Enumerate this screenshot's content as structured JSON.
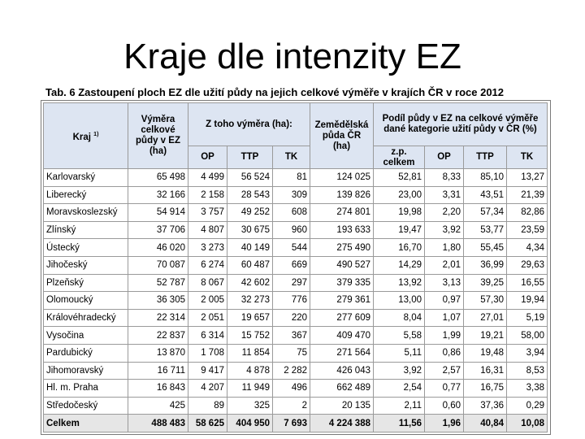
{
  "slide": {
    "title": "Kraje dle intenzity EZ"
  },
  "table": {
    "caption": "Tab. 6 Zastoupení ploch EZ dle užití půdy na jejich celkové výměře v krajích ČR v roce 2012",
    "headers": {
      "kraj": "Kraj",
      "kraj_note": "1)",
      "vymera": "Výměra celkové půdy v EZ (ha)",
      "z_toho": "Z toho výměra (ha):",
      "zemedelska": "Zemědělská půda ČR (ha)",
      "podil": "Podíl půdy v EZ na celkové výměře dané kategorie užití půdy v ČR (%)",
      "op": "OP",
      "ttp": "TTP",
      "tk": "TK",
      "zp_celkem": "z.p. celkem",
      "op2": "OP",
      "ttp2": "TTP",
      "tk2": "TK"
    },
    "rows": [
      {
        "kraj": "Karlovarský",
        "vymera": "65 498",
        "op": "4 499",
        "ttp": "56 524",
        "tk": "81",
        "zem": "124 025",
        "zp": "52,81",
        "pop": "8,33",
        "pttp": "85,10",
        "ptk": "13,27"
      },
      {
        "kraj": "Liberecký",
        "vymera": "32 166",
        "op": "2 158",
        "ttp": "28 543",
        "tk": "309",
        "zem": "139 826",
        "zp": "23,00",
        "pop": "3,31",
        "pttp": "43,51",
        "ptk": "21,39"
      },
      {
        "kraj": "Moravskoslezský",
        "vymera": "54 914",
        "op": "3 757",
        "ttp": "49 252",
        "tk": "608",
        "zem": "274 801",
        "zp": "19,98",
        "pop": "2,20",
        "pttp": "57,34",
        "ptk": "82,86"
      },
      {
        "kraj": "Zlínský",
        "vymera": "37 706",
        "op": "4 807",
        "ttp": "30 675",
        "tk": "960",
        "zem": "193 633",
        "zp": "19,47",
        "pop": "3,92",
        "pttp": "53,77",
        "ptk": "23,59"
      },
      {
        "kraj": "Ústecký",
        "vymera": "46 020",
        "op": "3 273",
        "ttp": "40 149",
        "tk": "544",
        "zem": "275 490",
        "zp": "16,70",
        "pop": "1,80",
        "pttp": "55,45",
        "ptk": "4,34"
      },
      {
        "kraj": "Jihočeský",
        "vymera": "70 087",
        "op": "6 274",
        "ttp": "60 487",
        "tk": "669",
        "zem": "490 527",
        "zp": "14,29",
        "pop": "2,01",
        "pttp": "36,99",
        "ptk": "29,63"
      },
      {
        "kraj": "Plzeňský",
        "vymera": "52 787",
        "op": "8 067",
        "ttp": "42 602",
        "tk": "297",
        "zem": "379 335",
        "zp": "13,92",
        "pop": "3,13",
        "pttp": "39,25",
        "ptk": "16,55"
      },
      {
        "kraj": "Olomoucký",
        "vymera": "36 305",
        "op": "2 005",
        "ttp": "32 273",
        "tk": "776",
        "zem": "279 361",
        "zp": "13,00",
        "pop": "0,97",
        "pttp": "57,30",
        "ptk": "19,94"
      },
      {
        "kraj": "Královéhradecký",
        "vymera": "22 314",
        "op": "2 051",
        "ttp": "19 657",
        "tk": "220",
        "zem": "277 609",
        "zp": "8,04",
        "pop": "1,07",
        "pttp": "27,01",
        "ptk": "5,19"
      },
      {
        "kraj": "Vysočina",
        "vymera": "22 837",
        "op": "6 314",
        "ttp": "15 752",
        "tk": "367",
        "zem": "409 470",
        "zp": "5,58",
        "pop": "1,99",
        "pttp": "19,21",
        "ptk": "58,00"
      },
      {
        "kraj": "Pardubický",
        "vymera": "13 870",
        "op": "1 708",
        "ttp": "11 854",
        "tk": "75",
        "zem": "271 564",
        "zp": "5,11",
        "pop": "0,86",
        "pttp": "19,48",
        "ptk": "3,94"
      },
      {
        "kraj": "Jihomoravský",
        "vymera": "16 711",
        "op": "9 417",
        "ttp": "4 878",
        "tk": "2 282",
        "zem": "426 043",
        "zp": "3,92",
        "pop": "2,57",
        "pttp": "16,31",
        "ptk": "8,53"
      },
      {
        "kraj": "Hl. m. Praha",
        "vymera": "16 843",
        "op": "4 207",
        "ttp": "11 949",
        "tk": "496",
        "zem": "662 489",
        "zp": "2,54",
        "pop": "0,77",
        "pttp": "16,75",
        "ptk": "3,38"
      },
      {
        "kraj": "Středočeský",
        "vymera": "425",
        "op": "89",
        "ttp": "325",
        "tk": "2",
        "zem": "20 135",
        "zp": "2,11",
        "pop": "0,60",
        "pttp": "37,36",
        "ptk": "0,29"
      }
    ],
    "total": {
      "kraj": "Celkem",
      "vymera": "488 483",
      "op": "58 625",
      "ttp": "404 950",
      "tk": "7 693",
      "zem": "4 224 388",
      "zp": "11,56",
      "pop": "1,96",
      "pttp": "40,84",
      "ptk": "10,08"
    }
  }
}
